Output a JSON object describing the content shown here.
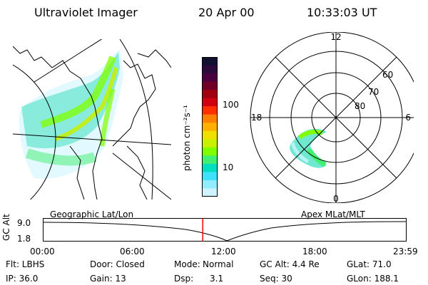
{
  "header": {
    "title": "Ultraviolet Imager",
    "date": "20 Apr 00",
    "time": "10:33:03 UT"
  },
  "colorbar": {
    "unit_label": "photon cm⁻²s⁻¹",
    "ticks": [
      "100",
      "10"
    ],
    "colors": [
      "#101030",
      "#2a0a3a",
      "#4a0040",
      "#700028",
      "#a00010",
      "#d00010",
      "#ff3000",
      "#ff8000",
      "#ffb000",
      "#f0e000",
      "#c8f000",
      "#80ff00",
      "#40f070",
      "#00e0c0",
      "#40e0ff",
      "#90ecff",
      "#d0f4ff"
    ]
  },
  "panels": {
    "geo_label": "Geographic Lat/Lon",
    "apex_label": "Apex MLat/MLT"
  },
  "polar": {
    "mlt_labels": {
      "top": "12",
      "bottom": "0",
      "left": "18",
      "right": "6"
    },
    "lat_labels": [
      "80",
      "70",
      "60"
    ]
  },
  "altitude_plot": {
    "ylabel": "GC Alt",
    "yticks": [
      "9.0",
      "1.8"
    ],
    "xticks": [
      "00:00",
      "06:00",
      "12:00",
      "18:00",
      "23:59"
    ],
    "marker_time": "10:33",
    "marker_color": "#ff0000"
  },
  "info": {
    "flt": "Flt: LBHS",
    "ip": "IP: 36.0",
    "door": "Door: Closed",
    "gain": "Gain: 13",
    "mode_label": "Mode:",
    "mode": "Normal",
    "dsp_label": "Dsp:",
    "dsp": "3.1",
    "gcalt": "GC Alt: 4.4 Re",
    "seq": "Seq: 30",
    "glat": "GLat: 71.0",
    "glon": "GLon: 188.1"
  }
}
